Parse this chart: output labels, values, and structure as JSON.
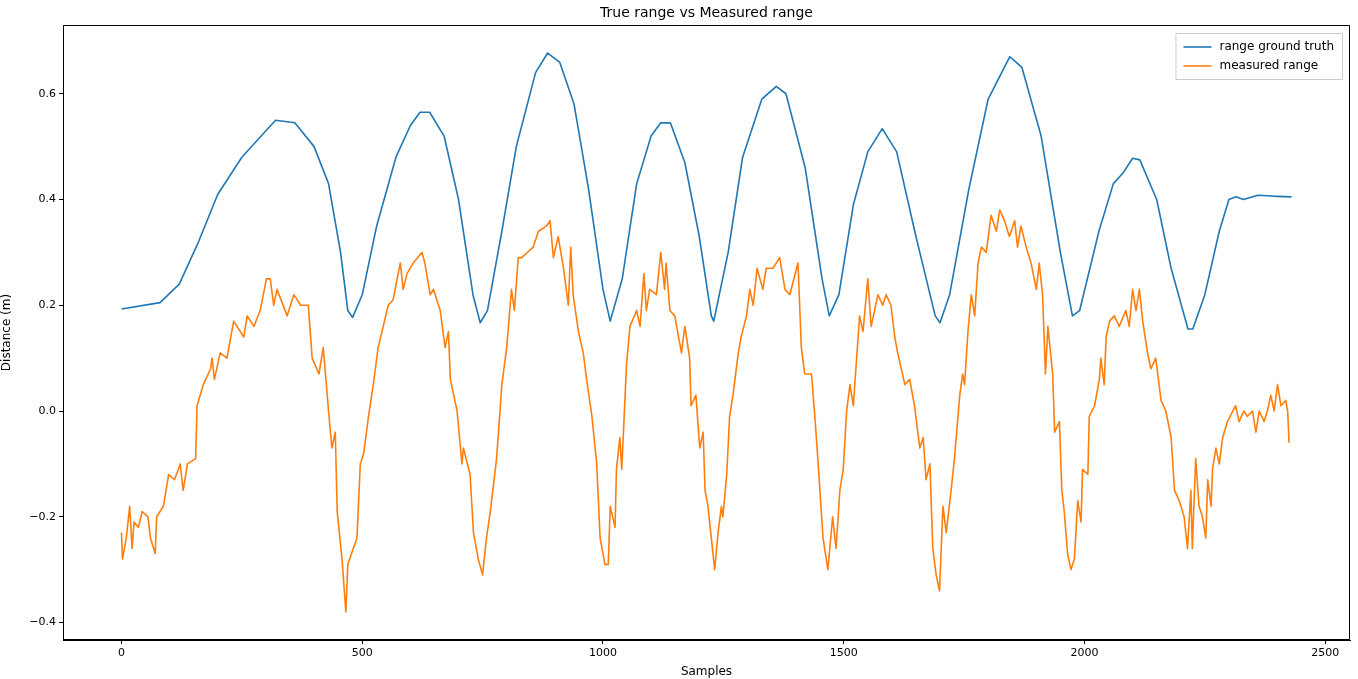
{
  "chart_data": {
    "type": "line",
    "title": "True range vs Measured range",
    "xlabel": "Samples",
    "ylabel": "Distance (m)",
    "xlim": [
      -121.5,
      2551.5
    ],
    "xticks": [
      0,
      500,
      1000,
      1500,
      2000,
      2500
    ],
    "ylim": [
      -0.433,
      0.73
    ],
    "yticks": [
      {
        "value": -0.4,
        "label": "−0.4"
      },
      {
        "value": -0.2,
        "label": "−0.2"
      },
      {
        "value": 0,
        "label": "0.0"
      },
      {
        "value": 0.2,
        "label": "0.2"
      },
      {
        "value": 0.4,
        "label": "0.4"
      },
      {
        "value": 0.6,
        "label": "0.6"
      }
    ],
    "grid": false,
    "legend": "top right",
    "marker": "none",
    "line_style": "solid",
    "series": [
      {
        "name": "range ground truth",
        "color": "#1f77b4",
        "x": [
          0,
          80,
          120,
          160,
          200,
          250,
          300,
          320,
          360,
          400,
          430,
          455,
          470,
          480,
          500,
          530,
          570,
          600,
          620,
          640,
          670,
          700,
          730,
          745,
          760,
          790,
          820,
          860,
          885,
          910,
          940,
          970,
          1000,
          1015,
          1040,
          1070,
          1100,
          1120,
          1140,
          1170,
          1200,
          1225,
          1230,
          1260,
          1290,
          1330,
          1360,
          1380,
          1420,
          1455,
          1470,
          1490,
          1520,
          1550,
          1580,
          1610,
          1650,
          1690,
          1700,
          1720,
          1760,
          1800,
          1845,
          1870,
          1910,
          1950,
          1975,
          1990,
          2030,
          2060,
          2080,
          2100,
          2115,
          2150,
          2180,
          2215,
          2225,
          2250,
          2280,
          2300,
          2315,
          2330,
          2360,
          2400,
          2430
        ],
        "values": [
          0.193,
          0.205,
          0.24,
          0.32,
          0.41,
          0.48,
          0.53,
          0.55,
          0.545,
          0.5,
          0.43,
          0.3,
          0.19,
          0.177,
          0.22,
          0.35,
          0.48,
          0.54,
          0.565,
          0.565,
          0.52,
          0.4,
          0.22,
          0.167,
          0.19,
          0.34,
          0.5,
          0.64,
          0.677,
          0.66,
          0.58,
          0.42,
          0.23,
          0.17,
          0.25,
          0.43,
          0.52,
          0.545,
          0.545,
          0.47,
          0.33,
          0.18,
          0.17,
          0.3,
          0.48,
          0.59,
          0.614,
          0.6,
          0.46,
          0.25,
          0.18,
          0.22,
          0.39,
          0.49,
          0.534,
          0.49,
          0.33,
          0.18,
          0.167,
          0.22,
          0.42,
          0.59,
          0.67,
          0.65,
          0.52,
          0.3,
          0.18,
          0.19,
          0.34,
          0.43,
          0.45,
          0.478,
          0.475,
          0.4,
          0.27,
          0.155,
          0.155,
          0.22,
          0.34,
          0.4,
          0.405,
          0.4,
          0.408,
          0.406,
          0.405
        ]
      },
      {
        "name": "measured range",
        "color": "#ff7f0e",
        "x": [
          0,
          2,
          10,
          17,
          22,
          26,
          35,
          43,
          55,
          60,
          70,
          73,
          87,
          98,
          110,
          122,
          128,
          137,
          154,
          157,
          170,
          185,
          188,
          193,
          205,
          219,
          233,
          254,
          261,
          275,
          288,
          301,
          309,
          316,
          323,
          344,
          358,
          372,
          388,
          396,
          410,
          419,
          430,
          437,
          444,
          448,
          458,
          466,
          470,
          489,
          496,
          503,
          513,
          523,
          533,
          554,
          564,
          579,
          585,
          593,
          606,
          624,
          630,
          641,
          648,
          662,
          672,
          679,
          683,
          697,
          707,
          710,
          724,
          731,
          741,
          750,
          758,
          766,
          779,
          790,
          800,
          810,
          816,
          824,
          831,
          855,
          866,
          883,
          890,
          897,
          907,
          918,
          928,
          933,
          938,
          949,
          959,
          966,
          977,
          987,
          994,
          1004,
          1011,
          1015,
          1025,
          1028,
          1035,
          1039,
          1046,
          1049,
          1056,
          1070,
          1077,
          1085,
          1090,
          1097,
          1111,
          1120,
          1128,
          1131,
          1139,
          1149,
          1163,
          1170,
          1180,
          1183,
          1193,
          1201,
          1208,
          1212,
          1218,
          1225,
          1232,
          1239,
          1246,
          1249,
          1257,
          1263,
          1270,
          1281,
          1287,
          1298,
          1305,
          1312,
          1320,
          1332,
          1339,
          1353,
          1367,
          1378,
          1388,
          1405,
          1412,
          1419,
          1433,
          1440,
          1447,
          1457,
          1467,
          1477,
          1484,
          1492,
          1499,
          1506,
          1513,
          1520,
          1526,
          1533,
          1540,
          1550,
          1557,
          1564,
          1571,
          1581,
          1588,
          1598,
          1606,
          1612,
          1627,
          1637,
          1647,
          1658,
          1665,
          1671,
          1679,
          1685,
          1692,
          1699,
          1706,
          1713,
          1723,
          1730,
          1741,
          1747,
          1751,
          1758,
          1765,
          1772,
          1779,
          1786,
          1796,
          1806,
          1817,
          1824,
          1834,
          1844,
          1855,
          1861,
          1868,
          1879,
          1889,
          1900,
          1906,
          1913,
          1919,
          1924,
          1934,
          1938,
          1948,
          1953,
          1958,
          1965,
          1972,
          1979,
          1986,
          1993,
          1996,
          2007,
          2010,
          2021,
          2031,
          2034,
          2041,
          2045,
          2052,
          2062,
          2072,
          2086,
          2093,
          2100,
          2107,
          2114,
          2121,
          2131,
          2138,
          2148,
          2159,
          2169,
          2180,
          2187,
          2197,
          2207,
          2214,
          2221,
          2224,
          2231,
          2238,
          2245,
          2252,
          2256,
          2263,
          2266,
          2273,
          2280,
          2287,
          2297,
          2308,
          2314,
          2321,
          2331,
          2338,
          2349,
          2356,
          2363,
          2373,
          2380,
          2387,
          2394,
          2401,
          2408,
          2418,
          2422,
          2425
        ],
        "values": [
          -0.23,
          -0.28,
          -0.24,
          -0.18,
          -0.26,
          -0.21,
          -0.22,
          -0.19,
          -0.2,
          -0.24,
          -0.27,
          -0.2,
          -0.18,
          -0.12,
          -0.13,
          -0.1,
          -0.15,
          -0.1,
          -0.09,
          0.01,
          0.05,
          0.08,
          0.1,
          0.06,
          0.11,
          0.1,
          0.17,
          0.14,
          0.18,
          0.16,
          0.19,
          0.25,
          0.25,
          0.2,
          0.23,
          0.18,
          0.22,
          0.2,
          0.2,
          0.1,
          0.07,
          0.12,
          0.0,
          -0.07,
          -0.04,
          -0.19,
          -0.28,
          -0.38,
          -0.29,
          -0.24,
          -0.1,
          -0.08,
          -0.01,
          0.05,
          0.12,
          0.2,
          0.21,
          0.28,
          0.23,
          0.26,
          0.28,
          0.3,
          0.28,
          0.22,
          0.23,
          0.19,
          0.12,
          0.15,
          0.06,
          0.0,
          -0.1,
          -0.07,
          -0.12,
          -0.23,
          -0.28,
          -0.31,
          -0.24,
          -0.19,
          -0.09,
          0.05,
          0.12,
          0.23,
          0.19,
          0.29,
          0.29,
          0.31,
          0.34,
          0.35,
          0.36,
          0.29,
          0.33,
          0.27,
          0.2,
          0.31,
          0.22,
          0.15,
          0.11,
          0.06,
          -0.01,
          -0.1,
          -0.24,
          -0.29,
          -0.29,
          -0.18,
          -0.22,
          -0.11,
          -0.05,
          -0.11,
          0.03,
          0.09,
          0.16,
          0.19,
          0.16,
          0.26,
          0.19,
          0.23,
          0.22,
          0.3,
          0.23,
          0.28,
          0.19,
          0.18,
          0.11,
          0.16,
          0.1,
          0.01,
          0.03,
          -0.07,
          -0.04,
          -0.15,
          -0.18,
          -0.24,
          -0.3,
          -0.23,
          -0.18,
          -0.2,
          -0.12,
          -0.01,
          0.03,
          0.11,
          0.14,
          0.18,
          0.23,
          0.2,
          0.27,
          0.23,
          0.27,
          0.27,
          0.29,
          0.23,
          0.22,
          0.28,
          0.12,
          0.07,
          0.07,
          -0.01,
          -0.1,
          -0.24,
          -0.3,
          -0.2,
          -0.26,
          -0.15,
          -0.11,
          0.0,
          0.05,
          0.01,
          0.09,
          0.18,
          0.15,
          0.25,
          0.16,
          0.19,
          0.22,
          0.2,
          0.22,
          0.2,
          0.14,
          0.11,
          0.05,
          0.06,
          0.01,
          -0.07,
          -0.05,
          -0.13,
          -0.1,
          -0.26,
          -0.31,
          -0.34,
          -0.18,
          -0.23,
          -0.15,
          -0.09,
          0.03,
          0.07,
          0.05,
          0.15,
          0.22,
          0.18,
          0.28,
          0.31,
          0.3,
          0.37,
          0.34,
          0.38,
          0.36,
          0.33,
          0.36,
          0.31,
          0.35,
          0.31,
          0.28,
          0.23,
          0.28,
          0.22,
          0.07,
          0.16,
          0.07,
          -0.04,
          -0.02,
          -0.15,
          -0.19,
          -0.27,
          -0.3,
          -0.28,
          -0.17,
          -0.21,
          -0.11,
          -0.12,
          -0.01,
          0.01,
          0.06,
          0.1,
          0.05,
          0.14,
          0.17,
          0.18,
          0.16,
          0.19,
          0.16,
          0.23,
          0.19,
          0.23,
          0.17,
          0.11,
          0.08,
          0.1,
          0.02,
          0.0,
          -0.05,
          -0.15,
          -0.17,
          -0.2,
          -0.26,
          -0.15,
          -0.26,
          -0.09,
          -0.18,
          -0.2,
          -0.24,
          -0.13,
          -0.18,
          -0.11,
          -0.07,
          -0.1,
          -0.05,
          -0.02,
          0.0,
          0.01,
          -0.02,
          0.0,
          -0.01,
          0.0,
          -0.04,
          0.0,
          -0.02,
          0.0,
          0.03,
          0.0,
          0.05,
          0.01,
          0.02,
          0.0,
          -0.06
        ]
      }
    ]
  }
}
